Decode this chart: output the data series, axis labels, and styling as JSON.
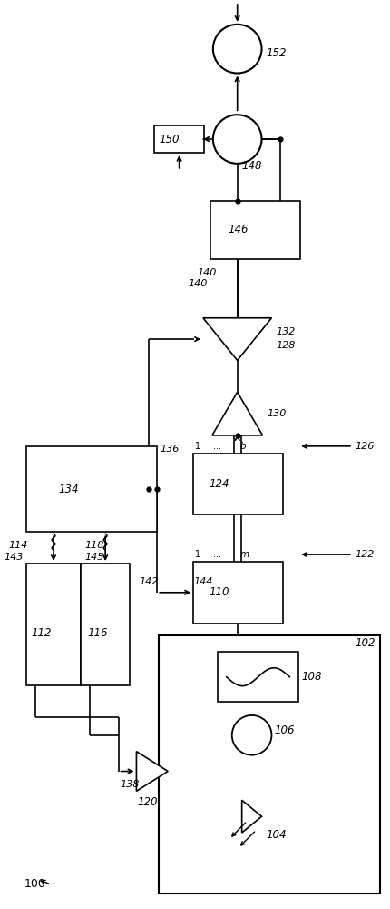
{
  "bg_color": "#ffffff",
  "line_color": "#000000",
  "fig_width": 4.3,
  "fig_height": 10.0,
  "dpi": 100
}
